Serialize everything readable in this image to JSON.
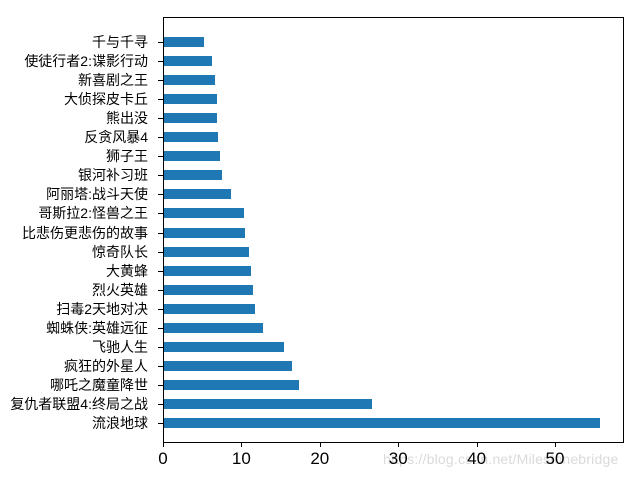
{
  "chart_data": {
    "type": "bar",
    "orientation": "horizontal",
    "title": "",
    "xlabel": "",
    "ylabel": "",
    "categories": [
      "千与千寻",
      "使徒行者2:谍影行动",
      "新喜剧之王",
      "大侦探皮卡丘",
      "熊出没",
      "反贪风暴4",
      "狮子王",
      "银河补习班",
      "阿丽塔:战斗天使",
      "哥斯拉2:怪兽之王",
      "比悲伤更悲伤的故事",
      "惊奇队长",
      "大黄蜂",
      "烈火英雄",
      "扫毒2天地对决",
      "蜘蛛侠:英雄远征",
      "飞驰人生",
      "疯狂的外星人",
      "哪吒之魔童降世",
      "复仇者联盟4:终局之战",
      "流浪地球"
    ],
    "values": [
      5.2,
      6.3,
      6.6,
      6.9,
      6.9,
      7.0,
      7.3,
      7.5,
      8.7,
      10.3,
      10.5,
      11.0,
      11.2,
      11.5,
      11.7,
      12.8,
      15.4,
      16.4,
      17.4,
      26.7,
      55.7
    ],
    "x_ticks": [
      0,
      10,
      20,
      30,
      40,
      50
    ],
    "xlim": [
      0,
      58.8
    ],
    "bar_color": "#1f77b4",
    "grid": false,
    "legend": false,
    "category_order_note": "listed top-to-bottom as displayed; values ascend toward bottom"
  },
  "watermark": {
    "text": "https://blog.csdn.net/Milestonebridge"
  }
}
